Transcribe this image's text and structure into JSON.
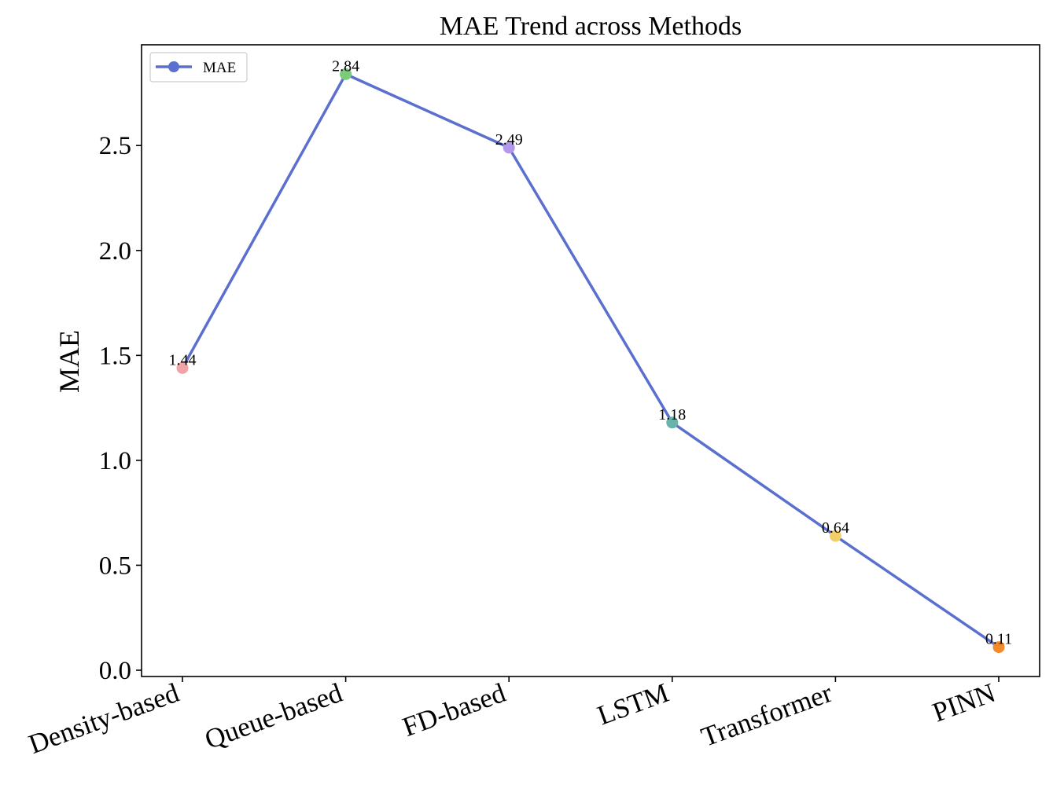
{
  "chart_data": {
    "type": "line",
    "title": "MAE Trend across Methods",
    "xlabel": "",
    "ylabel": "MAE",
    "categories": [
      "Density-based",
      "Queue-based",
      "FD-based",
      "LSTM",
      "Transformer",
      "PINN"
    ],
    "series": [
      {
        "name": "MAE",
        "values": [
          1.44,
          2.84,
          2.49,
          1.18,
          0.64,
          0.11
        ],
        "value_labels": [
          "1.44",
          "2.84",
          "2.49",
          "1.18",
          "0.64",
          "0.11"
        ],
        "line_color": "#5b6fcf",
        "marker_colors": [
          "#f2a3a7",
          "#7ccb7d",
          "#b397e8",
          "#6ab3aa",
          "#f2cf6b",
          "#f58a2c"
        ]
      }
    ],
    "ylim": [
      -0.03,
      2.98
    ],
    "yticks": [
      0.0,
      0.5,
      1.0,
      1.5,
      2.0,
      2.5
    ],
    "ytick_labels": [
      "0.0",
      "0.5",
      "1.0",
      "1.5",
      "2.0",
      "2.5"
    ],
    "grid": false,
    "legend_position": "top-left",
    "x_tick_rotation": "rotated ~20 degrees"
  }
}
